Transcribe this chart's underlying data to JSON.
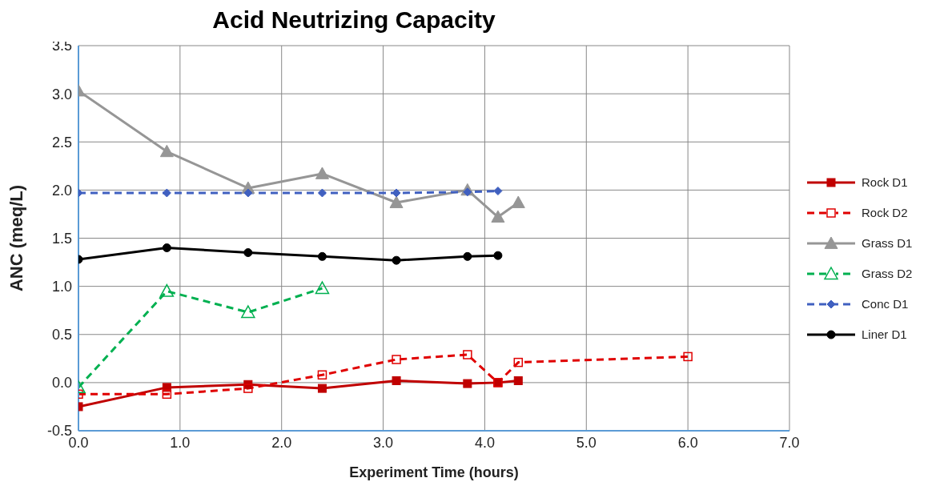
{
  "chart_data": {
    "type": "line",
    "title": "Acid Neutrizing Capacity",
    "xlabel": "Experiment Time (hours)",
    "ylabel": "ANC  (meq/L)",
    "xlim": [
      0,
      7
    ],
    "ylim": [
      -0.5,
      3.5
    ],
    "xticks": [
      {
        "value": 0,
        "label": "0.0"
      },
      {
        "value": 1,
        "label": "1.0"
      },
      {
        "value": 2,
        "label": "2.0"
      },
      {
        "value": 3,
        "label": "3.0"
      },
      {
        "value": 4,
        "label": "4.0"
      },
      {
        "value": 5,
        "label": "5.0"
      },
      {
        "value": 6,
        "label": "6.0"
      },
      {
        "value": 7,
        "label": "7.0"
      }
    ],
    "yticks": [
      {
        "value": -0.5,
        "label": "-0.5"
      },
      {
        "value": 0,
        "label": "0.0"
      },
      {
        "value": 0.5,
        "label": "0.5"
      },
      {
        "value": 1,
        "label": "1.0"
      },
      {
        "value": 1.5,
        "label": "1.5"
      },
      {
        "value": 2,
        "label": "2.0"
      },
      {
        "value": 2.5,
        "label": "2.5"
      },
      {
        "value": 3,
        "label": "3.0"
      },
      {
        "value": 3.5,
        "label": "3.5"
      }
    ],
    "grid": true,
    "legend": "right",
    "series": [
      {
        "name": "Rock D1",
        "color": "#c00000",
        "marker": "square",
        "line_style": "solid",
        "x": [
          0,
          0.87,
          1.67,
          2.4,
          3.13,
          3.83,
          4.13,
          4.33
        ],
        "values": [
          -0.25,
          -0.05,
          -0.02,
          -0.06,
          0.02,
          -0.01,
          0.0,
          0.02
        ]
      },
      {
        "name": "Rock D2",
        "color": "#e00000",
        "marker": "square",
        "line_style": "dashed",
        "x": [
          0,
          0.87,
          1.67,
          2.4,
          3.13,
          3.83,
          4.13,
          4.33,
          6.0
        ],
        "values": [
          -0.12,
          -0.12,
          -0.06,
          0.08,
          0.24,
          0.29,
          0.0,
          0.21,
          0.27
        ]
      },
      {
        "name": "Grass D1",
        "color": "#969696",
        "marker": "triangle",
        "line_style": "solid",
        "x": [
          0,
          0.87,
          1.67,
          2.4,
          3.13,
          3.83,
          4.13,
          4.33
        ],
        "values": [
          3.03,
          2.4,
          2.02,
          2.17,
          1.87,
          2.0,
          1.72,
          1.87
        ]
      },
      {
        "name": "Grass D2",
        "color": "#00b050",
        "marker": "triangle",
        "line_style": "dashed",
        "x": [
          0,
          0.87,
          1.67,
          2.4
        ],
        "values": [
          -0.05,
          0.95,
          0.73,
          0.98
        ]
      },
      {
        "name": "Conc D1",
        "color": "#4060c0",
        "marker": "diamond",
        "line_style": "dashed",
        "x": [
          0,
          0.87,
          1.67,
          2.4,
          3.13,
          3.83,
          4.13
        ],
        "values": [
          1.97,
          1.97,
          1.97,
          1.97,
          1.97,
          1.98,
          1.99
        ]
      },
      {
        "name": "Liner D1",
        "color": "#000000",
        "marker": "circle",
        "line_style": "solid",
        "x": [
          0,
          0.87,
          1.67,
          2.4,
          3.13,
          3.83,
          4.13
        ],
        "values": [
          1.28,
          1.4,
          1.35,
          1.31,
          1.27,
          1.31,
          1.32
        ]
      }
    ]
  }
}
